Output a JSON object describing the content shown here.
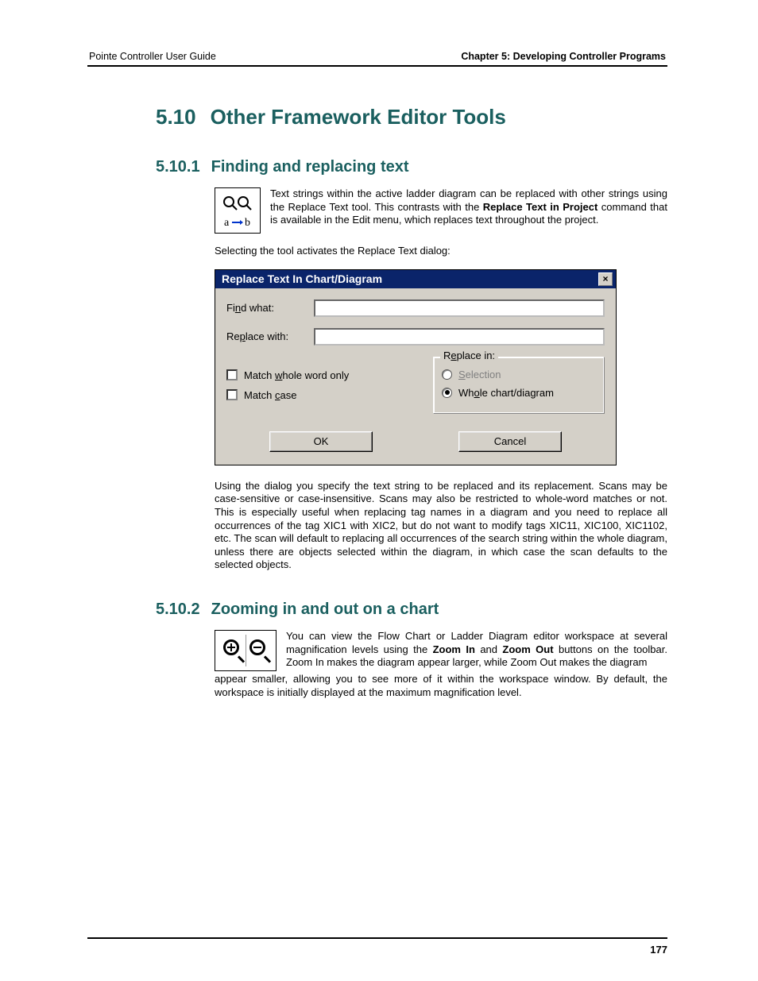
{
  "header": {
    "left": "Pointe Controller User Guide",
    "right": "Chapter 5: Developing Controller Programs"
  },
  "section": {
    "num": "5.10",
    "title": "Other Framework Editor Tools"
  },
  "sub1": {
    "num": "5.10.1",
    "title": "Finding and replacing text",
    "para1_a": "Text strings within the active ladder diagram can be replaced with other strings using the Replace Text tool. This contrasts with the ",
    "para1_bold": "Replace Text in Project",
    "para1_b": " command that is available in the Edit menu, which replaces text throughout the project.",
    "para2": "Selecting the tool activates the Replace Text dialog:",
    "para3": "Using the dialog you specify the text string to be replaced and its replacement. Scans may be case-sensitive or case-insensitive. Scans may also be restricted to whole-word matches or not. This is especially useful when replacing tag names in a diagram and you need to replace all occurrences of the tag XIC1 with XIC2, but do not want to modify tags XIC11, XIC100, XIC1102, etc. The scan will default to replacing all occurrences of the search string within the whole diagram, unless there are objects selected within the diagram, in which case the scan defaults to the selected objects."
  },
  "dialog": {
    "title": "Replace Text In Chart/Diagram",
    "find_label_pre": "Fi",
    "find_label_u": "n",
    "find_label_post": "d what:",
    "replace_label_pre": "Re",
    "replace_label_u": "p",
    "replace_label_post": "lace with:",
    "check_whole_pre": "Match ",
    "check_whole_u": "w",
    "check_whole_post": "hole word only",
    "check_case_pre": "Match ",
    "check_case_u": "c",
    "check_case_post": "ase",
    "group_pre": "R",
    "group_u": "e",
    "group_post": "place in:",
    "radio_sel_u": "S",
    "radio_sel_post": "election",
    "radio_whole_pre": "Wh",
    "radio_whole_u": "o",
    "radio_whole_post": "le chart/diagram",
    "btn_ok": "OK",
    "btn_cancel": "Cancel"
  },
  "sub2": {
    "num": "5.10.2",
    "title": "Zooming in and out on a chart",
    "para_a": "You can view the Flow Chart or Ladder Diagram editor workspace at several magnification levels using the ",
    "bold1": "Zoom In",
    "para_b": " and ",
    "bold2": "Zoom Out",
    "para_c": " buttons on the toolbar. Zoom In makes the diagram appear larger, while Zoom Out makes the diagram appear smaller, allowing you to see more of it within the workspace window. By default, the workspace is initially displayed at the maximum magnification level."
  },
  "page_number": "177"
}
